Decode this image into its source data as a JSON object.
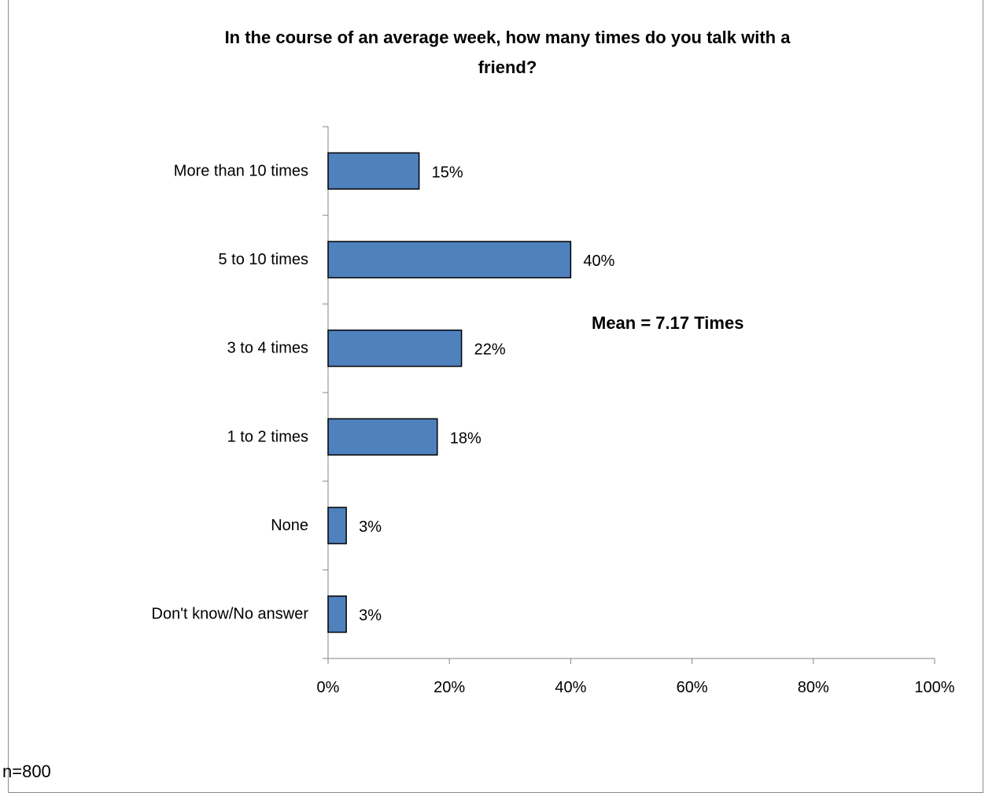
{
  "chart_data": {
    "type": "bar",
    "orientation": "horizontal",
    "title": "In the course of an average week, how many times do you talk with a friend?",
    "title_lines": [
      "In the course of an average week, how many times do you talk with a",
      "friend?"
    ],
    "categories": [
      "More than 10 times",
      "5 to 10 times",
      "3 to 4 times",
      "1 to 2 times",
      "None",
      "Don't know/No answer"
    ],
    "values": [
      15,
      40,
      22,
      18,
      3,
      3
    ],
    "value_labels": [
      "15%",
      "40%",
      "22%",
      "18%",
      "3%",
      "3%"
    ],
    "xlim": [
      0,
      100
    ],
    "x_ticks": [
      0,
      20,
      40,
      60,
      80,
      100
    ],
    "x_tick_labels": [
      "0%",
      "20%",
      "40%",
      "60%",
      "80%",
      "100%"
    ],
    "bar_color": "#4f81bd",
    "grid": false,
    "legend": "none",
    "annotation": "Mean = 7.17 Times",
    "footnote": "n=800"
  }
}
